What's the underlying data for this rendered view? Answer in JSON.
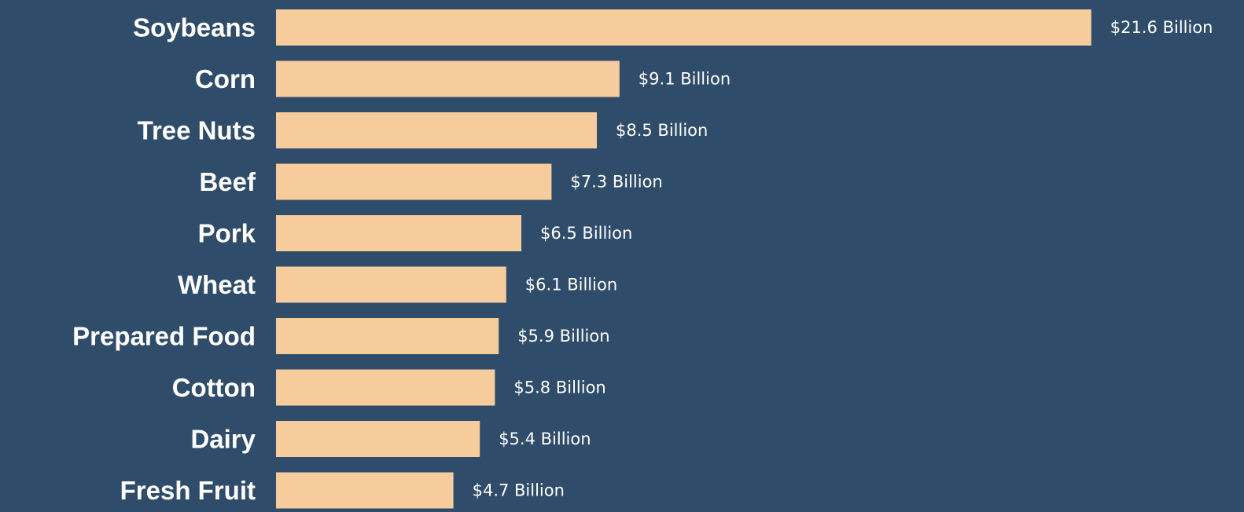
{
  "colors": {
    "background": "#304c6b",
    "bar": "#f6cc9c",
    "text": "#ffffff"
  },
  "chart_data": {
    "type": "bar",
    "orientation": "horizontal",
    "categories": [
      "Soybeans",
      "Corn",
      "Tree Nuts",
      "Beef",
      "Pork",
      "Wheat",
      "Prepared Food",
      "Cotton",
      "Dairy",
      "Fresh Fruit"
    ],
    "values": [
      21.6,
      9.1,
      8.5,
      7.3,
      6.5,
      6.1,
      5.9,
      5.8,
      5.4,
      4.7
    ],
    "data_labels": [
      "$21.6 Billion",
      "$9.1 Billion",
      "$8.5 Billion",
      "$7.3 Billion",
      "$6.5 Billion",
      "$6.1 Billion",
      "$5.9 Billion",
      "$5.8 Billion",
      "$5.4 Billion",
      "$4.7 Billion"
    ],
    "grid": false,
    "legend": "none"
  }
}
